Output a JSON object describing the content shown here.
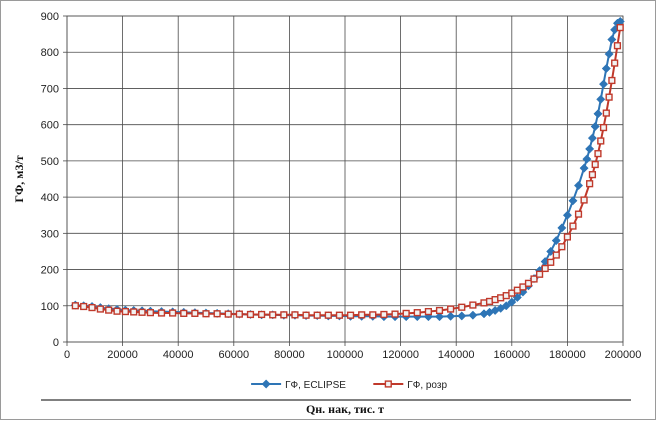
{
  "chart_data": {
    "type": "scatter",
    "title": "",
    "xlabel": "Qн. нак, тис. т",
    "ylabel": "ГФ, м3/т",
    "xlim": [
      0,
      200000
    ],
    "ylim": [
      0,
      900
    ],
    "xticks": [
      0,
      20000,
      40000,
      60000,
      80000,
      100000,
      120000,
      140000,
      160000,
      180000,
      200000
    ],
    "yticks": [
      0,
      100,
      200,
      300,
      400,
      500,
      600,
      700,
      800,
      900
    ],
    "xtick_labels": [
      "0",
      "20000",
      "40000",
      "60000",
      "80000",
      "100000",
      "120000",
      "140000",
      "160000",
      "180000",
      "200000"
    ],
    "ytick_labels": [
      "0",
      "100",
      "200",
      "300",
      "400",
      "500",
      "600",
      "700",
      "800",
      "900"
    ],
    "grid": true,
    "legend_position": "bottom",
    "series": [
      {
        "name": "ГФ, ECLIPSE",
        "color": "#2e75b6",
        "marker": "diamond",
        "x": [
          3000,
          6000,
          9000,
          12000,
          15000,
          18000,
          21000,
          24000,
          27000,
          30000,
          34000,
          38000,
          42000,
          46000,
          50000,
          54000,
          58000,
          62000,
          66000,
          70000,
          74000,
          78000,
          82000,
          86000,
          90000,
          94000,
          98000,
          102000,
          106000,
          110000,
          114000,
          118000,
          122000,
          126000,
          130000,
          134000,
          138000,
          142000,
          146000,
          150000,
          152000,
          154000,
          156000,
          158000,
          160000,
          162000,
          164000,
          166000,
          168000,
          170000,
          172000,
          174000,
          176000,
          178000,
          180000,
          182000,
          184000,
          186000,
          187000,
          188000,
          189000,
          190000,
          191000,
          192000,
          193000,
          194000,
          195000,
          196000,
          197000,
          198000,
          199000
        ],
        "y": [
          102,
          100,
          98,
          95,
          92,
          90,
          88,
          87,
          86,
          85,
          84,
          83,
          82,
          81,
          80,
          79,
          78,
          77,
          76,
          75,
          75,
          74,
          74,
          73,
          73,
          72,
          72,
          71,
          71,
          71,
          70,
          70,
          70,
          70,
          70,
          70,
          71,
          72,
          74,
          78,
          82,
          87,
          93,
          100,
          110,
          123,
          138,
          155,
          175,
          197,
          222,
          250,
          280,
          315,
          350,
          390,
          432,
          480,
          505,
          533,
          563,
          595,
          630,
          670,
          712,
          755,
          795,
          835,
          862,
          880,
          885
        ]
      },
      {
        "name": "ГФ, розр",
        "color": "#c0392b",
        "marker": "square",
        "x": [
          3000,
          6000,
          9000,
          12000,
          15000,
          18000,
          21000,
          24000,
          27000,
          30000,
          34000,
          38000,
          42000,
          46000,
          50000,
          54000,
          58000,
          62000,
          66000,
          70000,
          74000,
          78000,
          82000,
          86000,
          90000,
          94000,
          98000,
          102000,
          106000,
          110000,
          114000,
          118000,
          122000,
          126000,
          130000,
          134000,
          138000,
          142000,
          146000,
          150000,
          152000,
          154000,
          156000,
          158000,
          160000,
          162000,
          164000,
          166000,
          168000,
          170000,
          172000,
          174000,
          176000,
          178000,
          180000,
          182000,
          184000,
          186000,
          188000,
          189000,
          190000,
          191000,
          192000,
          193000,
          194000,
          195000,
          196000,
          197000,
          198000,
          199000
        ],
        "y": [
          100,
          98,
          95,
          91,
          88,
          85,
          84,
          83,
          82,
          81,
          80,
          80,
          79,
          79,
          78,
          78,
          77,
          77,
          76,
          76,
          75,
          75,
          75,
          74,
          74,
          74,
          74,
          74,
          75,
          75,
          76,
          77,
          79,
          81,
          84,
          87,
          91,
          96,
          102,
          108,
          112,
          117,
          122,
          128,
          135,
          143,
          152,
          162,
          174,
          187,
          203,
          220,
          240,
          263,
          290,
          320,
          353,
          392,
          437,
          462,
          490,
          520,
          555,
          592,
          632,
          676,
          722,
          770,
          818,
          868
        ]
      }
    ]
  }
}
